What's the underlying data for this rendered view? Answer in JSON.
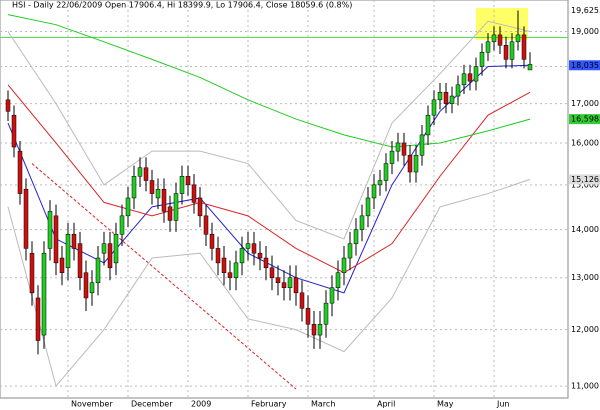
{
  "chart_data": {
    "type": "candlestick",
    "title": "HSI - Daily 22/06/2009 Open 17906.4, Hi 18399.9, Lo 17906.4, Close 18059.6 (0.8%)",
    "log_scale": true,
    "grid": true,
    "ylim": [
      10900,
      19700
    ],
    "yticks": [
      {
        "value": 11000,
        "label": "11,000"
      },
      {
        "value": 12000,
        "label": "12,000"
      },
      {
        "value": 13000,
        "label": "13,000"
      },
      {
        "value": 14000,
        "label": "14,000"
      },
      {
        "value": 15000,
        "label": "15,000"
      },
      {
        "value": 16000,
        "label": "16,000"
      },
      {
        "value": 17000,
        "label": "17,000"
      },
      {
        "value": 18000,
        "label": "18,000"
      },
      {
        "value": 19000,
        "label": "19,000"
      }
    ],
    "xlim": [
      -1,
      93
    ],
    "xticks": [
      {
        "value": 10,
        "label": "November"
      },
      {
        "value": 20,
        "label": "December"
      },
      {
        "value": 30,
        "label": "2009"
      },
      {
        "value": 40,
        "label": "February"
      },
      {
        "value": 50,
        "label": "March"
      },
      {
        "value": 61,
        "label": "April"
      },
      {
        "value": 71,
        "label": "May"
      },
      {
        "value": 81,
        "label": "Jun"
      }
    ],
    "up_color": "#22cc22",
    "down_color": "#cc1111",
    "open": [
      17100,
      16700,
      15800,
      14900,
      13500,
      12600,
      11900,
      13600,
      14300,
      13400,
      13200,
      13900,
      13700,
      13100,
      12700,
      12900,
      13500,
      13700,
      13300,
      13900,
      14300,
      14700,
      15200,
      15400,
      15100,
      14700,
      14900,
      14500,
      14200,
      14800,
      15200,
      15000,
      14700,
      14300,
      13900,
      13600,
      13400,
      13100,
      13000,
      13300,
      13600,
      13700,
      13500,
      13400,
      13200,
      13000,
      12900,
      12800,
      13000,
      12700,
      12400,
      12100,
      11900,
      12100,
      12500,
      12800,
      13100,
      13400,
      13700,
      14000,
      14300,
      14700,
      15000,
      15100,
      15500,
      15800,
      16000,
      15700,
      15300,
      15700,
      16200,
      16700,
      17100,
      17300,
      17000,
      17200,
      17500,
      17800,
      17600,
      18000,
      18400,
      18700,
      18900,
      18600,
      18200,
      18700,
      18900,
      17906.4
    ],
    "high": [
      17350,
      16950,
      16050,
      15150,
      13750,
      12850,
      13750,
      14650,
      14550,
      13650,
      14150,
      14150,
      13950,
      13350,
      13150,
      13650,
      13950,
      13950,
      14150,
      14550,
      14950,
      15450,
      15650,
      15650,
      15350,
      15150,
      15150,
      14750,
      15050,
      15450,
      15450,
      15250,
      14950,
      14550,
      14150,
      13850,
      13650,
      13350,
      13550,
      13850,
      13950,
      13950,
      13750,
      13650,
      13450,
      13250,
      13150,
      13250,
      13250,
      12950,
      12650,
      12350,
      12350,
      12750,
      13050,
      13350,
      13650,
      13950,
      14250,
      14550,
      14950,
      15250,
      15350,
      15750,
      16050,
      16250,
      16250,
      15950,
      15950,
      16450,
      16950,
      17350,
      17550,
      17550,
      17450,
      17750,
      18050,
      18050,
      18250,
      18650,
      18950,
      19150,
      19150,
      18850,
      18950,
      19625.1,
      19150,
      18399.9
    ],
    "low": [
      16550,
      15650,
      14550,
      13350,
      12450,
      11550,
      11650,
      13350,
      13050,
      12850,
      12950,
      13350,
      12750,
      12350,
      12450,
      12650,
      13250,
      12950,
      13050,
      13650,
      14050,
      14450,
      14950,
      14850,
      14550,
      14450,
      14150,
      13950,
      13950,
      14550,
      14750,
      14350,
      14050,
      13650,
      13350,
      13050,
      12850,
      12750,
      12750,
      13050,
      13350,
      13250,
      13150,
      12950,
      12750,
      12650,
      12550,
      12550,
      12450,
      12150,
      11850,
      11650,
      11650,
      11850,
      12250,
      12550,
      12850,
      13150,
      13450,
      13750,
      14050,
      14450,
      14750,
      14850,
      15250,
      15550,
      15450,
      15050,
      15050,
      15450,
      15950,
      16450,
      16850,
      16750,
      16750,
      16950,
      17250,
      17350,
      17350,
      17750,
      18150,
      18450,
      18350,
      17950,
      17950,
      18450,
      17950,
      17906.4
    ],
    "close": [
      16800,
      15900,
      14800,
      13600,
      12700,
      11800,
      13500,
      14400,
      13300,
      13100,
      13900,
      13600,
      13000,
      12600,
      12900,
      13400,
      13700,
      13200,
      13900,
      14300,
      14700,
      15200,
      15400,
      15100,
      14800,
      14900,
      14400,
      14200,
      14800,
      15200,
      15000,
      14600,
      14300,
      13900,
      13600,
      13300,
      13100,
      13000,
      13300,
      13600,
      13700,
      13500,
      13400,
      13200,
      13000,
      12900,
      12800,
      13000,
      12700,
      12400,
      12100,
      11900,
      12100,
      12500,
      12800,
      13100,
      13400,
      13700,
      14000,
      14300,
      14700,
      15000,
      15100,
      15500,
      15800,
      16000,
      15700,
      15300,
      15700,
      16200,
      16700,
      17100,
      17300,
      17000,
      17200,
      17500,
      17800,
      17600,
      18000,
      18400,
      18700,
      18900,
      18600,
      18200,
      18700,
      18900,
      18200,
      18059.6
    ],
    "overlays": [
      {
        "color": "#2222cc",
        "x": [
          0,
          8,
          16,
          24,
          32,
          40,
          48,
          56,
          64,
          72,
          80,
          87
        ],
        "values": [
          16500,
          13800,
          13300,
          14500,
          14700,
          13500,
          13000,
          12700,
          15000,
          16800,
          18000,
          18035.6
        ]
      },
      {
        "color": "#dd2222",
        "x": [
          0,
          8,
          16,
          24,
          32,
          40,
          48,
          56,
          64,
          72,
          80,
          87
        ],
        "values": [
          17500,
          16000,
          14600,
          14300,
          14600,
          14300,
          13600,
          13100,
          13700,
          15200,
          16700,
          17300
        ]
      },
      {
        "color": "#22cc22",
        "x": [
          0,
          8,
          16,
          24,
          32,
          40,
          48,
          56,
          64,
          72,
          80,
          87
        ],
        "values": [
          19500,
          19200,
          18700,
          18200,
          17700,
          17100,
          16600,
          16200,
          15900,
          16000,
          16300,
          16598.7
        ]
      },
      {
        "color": "#bbbbbb",
        "x": [
          0,
          8,
          16,
          24,
          32,
          40,
          48,
          56,
          64,
          72,
          80,
          87
        ],
        "values": [
          19000,
          17000,
          15000,
          15800,
          15800,
          15500,
          14200,
          13800,
          16500,
          17800,
          19300,
          19000
        ]
      },
      {
        "color": "#bbbbbb",
        "x": [
          0,
          8,
          16,
          24,
          32,
          40,
          48,
          56,
          64,
          72,
          80,
          87
        ],
        "values": [
          14500,
          11000,
          12000,
          13400,
          13500,
          12200,
          12000,
          11600,
          12600,
          14500,
          14800,
          15126.8
        ]
      }
    ],
    "trendline": {
      "color": "#dd2222",
      "x": [
        4,
        48
      ],
      "values": [
        15500,
        10950
      ]
    },
    "hline": {
      "color": "#55dd55",
      "value": 18824
    },
    "price_labels": [
      {
        "value": 19625.1,
        "label": "19,625.1",
        "color": "#ffffff"
      },
      {
        "value": 18059.6,
        "label": "18,059.6",
        "color": "#ffffff"
      },
      {
        "value": 18035.6,
        "label": "18,035.6",
        "color": "#3355ff"
      },
      {
        "value": 16598.7,
        "label": "16,598.7",
        "color": "#33cc33"
      },
      {
        "value": 15126.8,
        "label": "15,126.8",
        "color": "#dddddd"
      }
    ]
  }
}
